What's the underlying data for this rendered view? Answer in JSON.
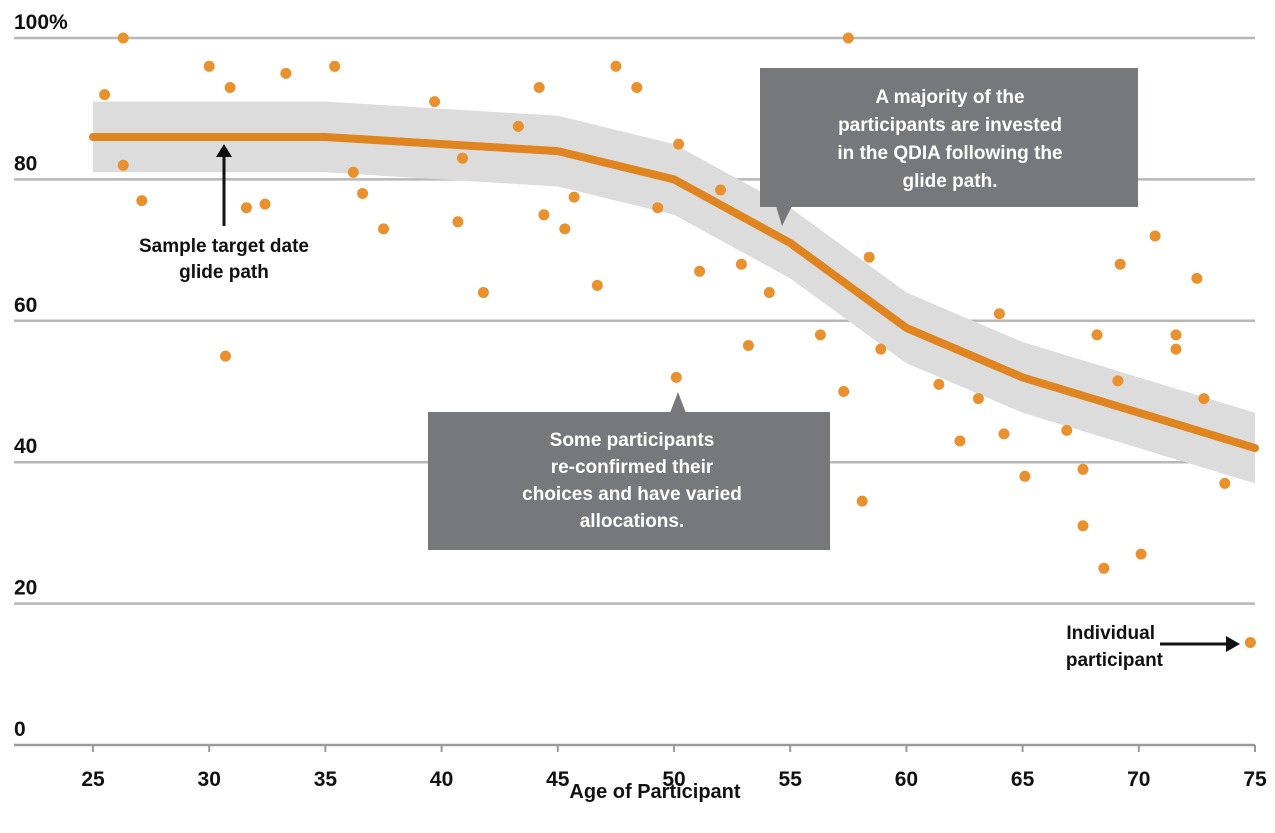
{
  "chart_data": {
    "type": "scatter",
    "xlabel": "Age of Participant",
    "xlim": [
      25,
      75
    ],
    "ylim": [
      0,
      100
    ],
    "x_ticks": [
      25,
      30,
      35,
      40,
      45,
      50,
      55,
      60,
      65,
      70,
      75
    ],
    "x_tick_labels": [
      "25",
      "30",
      "35",
      "40",
      "45",
      "50",
      "55",
      "60",
      "65",
      "70",
      "75"
    ],
    "y_ticks": [
      0,
      20,
      40,
      60,
      80,
      100
    ],
    "y_tick_labels": [
      "0",
      "20",
      "40",
      "60",
      "80",
      "100%"
    ],
    "grid": true,
    "colors": {
      "points": "#e8912e",
      "glide_path": "#e08420",
      "band": "#dcdcdc",
      "callout": "#76787b",
      "grid": "#b8b8b8"
    },
    "glide_path": {
      "x": [
        25,
        35,
        45,
        50,
        55,
        60,
        65,
        70,
        75
      ],
      "y": [
        86,
        86,
        84,
        80,
        71,
        59,
        52,
        47,
        42
      ]
    },
    "band_halfwidth": 5,
    "points": [
      {
        "x": 25.5,
        "y": 92
      },
      {
        "x": 26.3,
        "y": 100
      },
      {
        "x": 26.3,
        "y": 82
      },
      {
        "x": 27.1,
        "y": 77
      },
      {
        "x": 30.0,
        "y": 96
      },
      {
        "x": 30.7,
        "y": 55
      },
      {
        "x": 30.9,
        "y": 93
      },
      {
        "x": 31.6,
        "y": 76
      },
      {
        "x": 32.4,
        "y": 76.5
      },
      {
        "x": 33.3,
        "y": 95
      },
      {
        "x": 35.4,
        "y": 96
      },
      {
        "x": 36.2,
        "y": 81
      },
      {
        "x": 36.6,
        "y": 78
      },
      {
        "x": 37.5,
        "y": 73
      },
      {
        "x": 39.7,
        "y": 91
      },
      {
        "x": 40.7,
        "y": 74
      },
      {
        "x": 40.9,
        "y": 83
      },
      {
        "x": 41.8,
        "y": 64
      },
      {
        "x": 43.3,
        "y": 87.5
      },
      {
        "x": 44.2,
        "y": 93
      },
      {
        "x": 44.4,
        "y": 75
      },
      {
        "x": 45.3,
        "y": 73
      },
      {
        "x": 45.7,
        "y": 77.5
      },
      {
        "x": 46.7,
        "y": 65
      },
      {
        "x": 47.5,
        "y": 96
      },
      {
        "x": 48.4,
        "y": 93
      },
      {
        "x": 49.3,
        "y": 76
      },
      {
        "x": 50.1,
        "y": 52
      },
      {
        "x": 50.2,
        "y": 85
      },
      {
        "x": 51.1,
        "y": 67
      },
      {
        "x": 52.0,
        "y": 78.5
      },
      {
        "x": 52.9,
        "y": 68
      },
      {
        "x": 53.2,
        "y": 56.5
      },
      {
        "x": 54.1,
        "y": 64
      },
      {
        "x": 56.3,
        "y": 58
      },
      {
        "x": 57.3,
        "y": 50
      },
      {
        "x": 57.5,
        "y": 100
      },
      {
        "x": 58.1,
        "y": 34.5
      },
      {
        "x": 58.4,
        "y": 69
      },
      {
        "x": 58.9,
        "y": 56
      },
      {
        "x": 61.4,
        "y": 51
      },
      {
        "x": 62.3,
        "y": 43
      },
      {
        "x": 63.1,
        "y": 49
      },
      {
        "x": 64.0,
        "y": 61
      },
      {
        "x": 64.2,
        "y": 44
      },
      {
        "x": 65.1,
        "y": 38
      },
      {
        "x": 66.9,
        "y": 44.5
      },
      {
        "x": 67.6,
        "y": 39
      },
      {
        "x": 67.6,
        "y": 31
      },
      {
        "x": 68.2,
        "y": 58
      },
      {
        "x": 68.5,
        "y": 25
      },
      {
        "x": 69.1,
        "y": 51.5
      },
      {
        "x": 69.2,
        "y": 68
      },
      {
        "x": 70.1,
        "y": 27
      },
      {
        "x": 70.7,
        "y": 72
      },
      {
        "x": 71.6,
        "y": 58
      },
      {
        "x": 71.6,
        "y": 56
      },
      {
        "x": 72.5,
        "y": 66
      },
      {
        "x": 72.8,
        "y": 49
      },
      {
        "x": 73.7,
        "y": 37
      },
      {
        "x": 74.8,
        "y": 14.5
      }
    ],
    "annotations": {
      "glide_path_label": [
        "Sample target date",
        "glide path"
      ],
      "majority_callout": [
        "A majority of the",
        "participants are invested",
        "in the QDIA following the",
        "glide path."
      ],
      "some_callout": [
        "Some participants",
        "re-confirmed their",
        "choices and have varied",
        "allocations."
      ],
      "individual_label": [
        "Individual",
        "participant"
      ]
    }
  }
}
